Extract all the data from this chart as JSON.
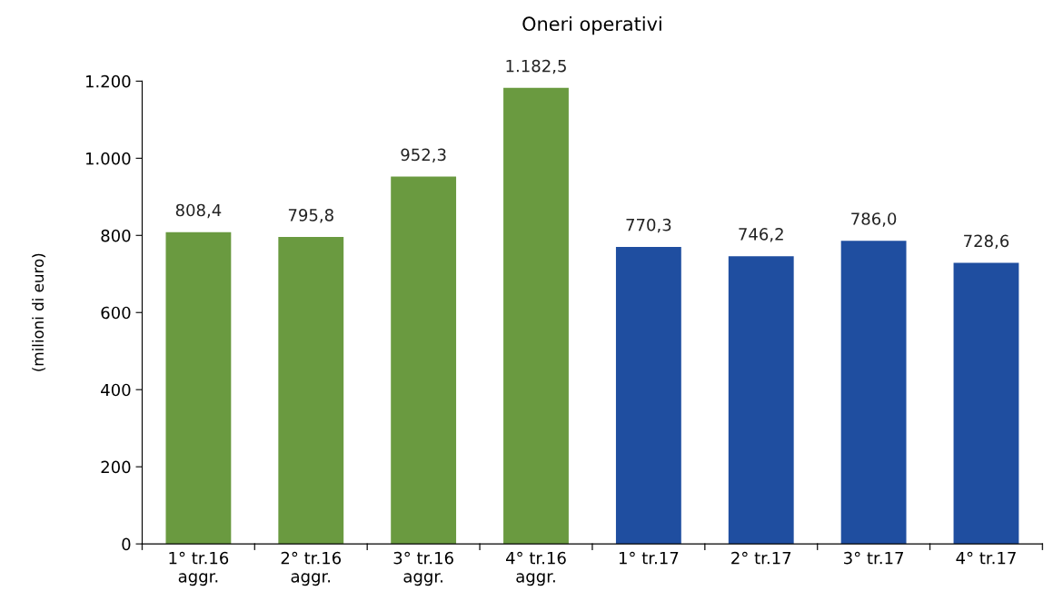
{
  "chart_data": {
    "type": "bar",
    "title": "Oneri operativi",
    "ylabel": "(milioni di euro)",
    "categories": [
      "1° tr.16\naggr.",
      "2° tr.16\naggr.",
      "3° tr.16\naggr.",
      "4° tr.16\naggr.",
      "1° tr.17",
      "2° tr.17",
      "3° tr.17",
      "4° tr.17"
    ],
    "values": [
      808.4,
      795.8,
      952.3,
      1182.5,
      770.3,
      746.2,
      786.0,
      728.6
    ],
    "colors": [
      "#6a9a40",
      "#6a9a40",
      "#6a9a40",
      "#6a9a40",
      "#1f4ea0",
      "#1f4ea0",
      "#1f4ea0",
      "#1f4ea0"
    ],
    "value_labels": [
      "808,4",
      "795,8",
      "952,3",
      "1.182,5",
      "770,3",
      "746,2",
      "786,0",
      "728,6"
    ],
    "ylim": [
      0,
      1200
    ],
    "yticks": [
      0,
      200,
      400,
      600,
      800,
      {
        "value": 1000,
        "label": "1.000"
      },
      {
        "value": 1200,
        "label": "1.200"
      }
    ],
    "grid": false,
    "legend": false
  }
}
